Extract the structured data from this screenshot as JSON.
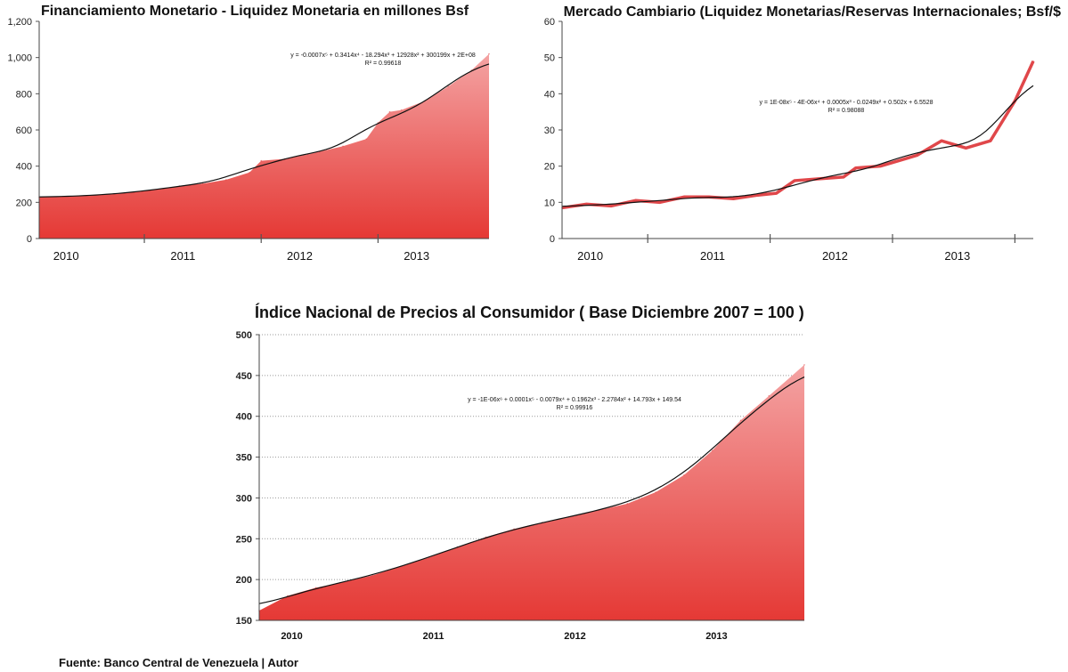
{
  "colors": {
    "area_top": "#f4a3a3",
    "area_bottom": "#e53935",
    "line": "#e0474a",
    "trend": "#111111"
  },
  "footer": "Fuente: Banco Central de Venezuela | Autor",
  "chart_data": [
    {
      "id": "financiamiento",
      "type": "area",
      "title": "Financiamiento Monetario - Liquidez Monetaria en millones Bsf",
      "ylim": [
        0,
        1200
      ],
      "yticks": [
        "0",
        "200",
        "400",
        "600",
        "800",
        "1,000",
        "1,200"
      ],
      "ytick_values": [
        0,
        200,
        400,
        600,
        800,
        1000,
        1200
      ],
      "x_labels": [
        "2010",
        "2011",
        "2012",
        "2013"
      ],
      "xlim": [
        2009.6,
        2013.45
      ],
      "x_label_positions": [
        2009.83,
        2010.83,
        2011.83,
        2012.83
      ],
      "x_separators": [
        2010.5,
        2011.5,
        2012.5,
        2013.5
      ],
      "x": [
        2009.6,
        2009.8,
        2010.0,
        2010.2,
        2010.4,
        2010.6,
        2010.8,
        2011.0,
        2011.2,
        2011.4,
        2011.5,
        2011.7,
        2011.9,
        2012.0,
        2012.2,
        2012.4,
        2012.5,
        2012.6,
        2012.7,
        2012.9,
        2013.1,
        2013.3,
        2013.45
      ],
      "values": [
        228,
        232,
        236,
        244,
        255,
        270,
        290,
        303,
        325,
        365,
        430,
        440,
        465,
        480,
        510,
        550,
        640,
        700,
        710,
        760,
        840,
        930,
        1020
      ],
      "trendline_equation": "y = -0.0007x⁵ + 0.3414x⁴ - 18.294x³ + 12928x² + 300199x + 2E+08",
      "r_squared": "R² = 0.99618"
    },
    {
      "id": "mercado-cambiario",
      "type": "line",
      "title": "Mercado Cambiario (Liquidez Monetarias/Reservas Internacionales; Bsf/$",
      "ylim": [
        0,
        60
      ],
      "yticks": [
        "0",
        "10",
        "20",
        "30",
        "40",
        "50",
        "60"
      ],
      "ytick_values": [
        0,
        10,
        20,
        30,
        40,
        50,
        60
      ],
      "x_labels": [
        "2010",
        "2011",
        "2012",
        "2013"
      ],
      "xlim": [
        2009.6,
        2013.45
      ],
      "x_label_positions": [
        2009.83,
        2010.83,
        2011.83,
        2012.83
      ],
      "x_separators": [
        2010.3,
        2011.3,
        2012.3,
        2013.3
      ],
      "x": [
        2009.6,
        2009.8,
        2010.0,
        2010.2,
        2010.4,
        2010.6,
        2010.8,
        2011.0,
        2011.2,
        2011.35,
        2011.5,
        2011.7,
        2011.9,
        2012.0,
        2012.2,
        2012.4,
        2012.5,
        2012.6,
        2012.7,
        2012.9,
        2013.1,
        2013.3,
        2013.45
      ],
      "values": [
        8.5,
        9.5,
        9.0,
        10.5,
        10.0,
        11.5,
        11.5,
        11.0,
        12.0,
        12.5,
        16.0,
        16.5,
        17.0,
        19.5,
        20.0,
        22.0,
        23.0,
        25.0,
        27.0,
        25.0,
        27.0,
        38.0,
        49.0
      ],
      "trendline_equation": "y = 1E-08x⁵ - 4E-06x⁴ + 0.0005x³ - 0.0249x² + 0.502x + 6.5528",
      "r_squared": "R² = 0.98088"
    },
    {
      "id": "indice-precios",
      "type": "area",
      "title": "Índice Nacional de Precios al Consumidor ( Base Diciembre 2007 = 100 )",
      "ylim": [
        150,
        500
      ],
      "yticks": [
        "150",
        "200",
        "250",
        "300",
        "350",
        "400",
        "450",
        "500"
      ],
      "ytick_values": [
        150,
        200,
        250,
        300,
        350,
        400,
        450,
        500
      ],
      "x_labels": [
        "2010",
        "2011",
        "2012",
        "2013"
      ],
      "xlim": [
        2009.6,
        2013.45
      ],
      "x_label_positions": [
        2009.83,
        2010.83,
        2011.83,
        2012.83
      ],
      "x_separators": [],
      "x": [
        2009.6,
        2009.8,
        2010.0,
        2010.2,
        2010.4,
        2010.6,
        2010.8,
        2011.0,
        2011.2,
        2011.4,
        2011.6,
        2011.8,
        2012.0,
        2012.2,
        2012.4,
        2012.6,
        2012.8,
        2013.0,
        2013.2,
        2013.45
      ],
      "values": [
        162,
        180,
        190,
        197,
        205,
        216,
        227,
        240,
        252,
        262,
        270,
        277,
        285,
        293,
        307,
        328,
        358,
        395,
        425,
        463
      ],
      "trendline_equation": "y = -1E-06x⁶ + 0.0001x⁵ - 0.0079x⁴ + 0.1962x³ - 2.2784x² + 14.793x + 149.54",
      "r_squared": "R² = 0.99916"
    }
  ]
}
